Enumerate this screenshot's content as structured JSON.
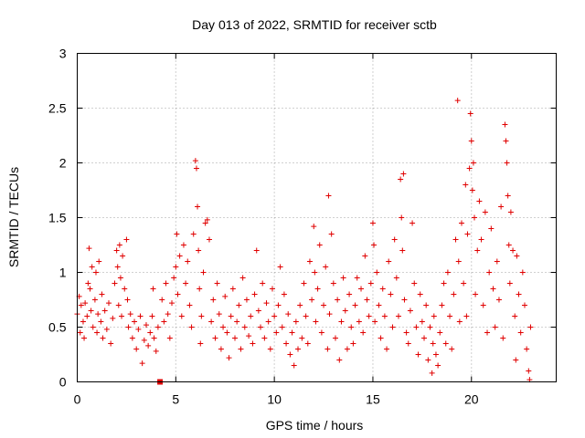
{
  "colors": {
    "series": "#e00000",
    "grid": "#a0a0a0",
    "frame": "#000000"
  },
  "chart_data": {
    "type": "scatter",
    "title": "Day 013 of 2022, SRMTID for receiver sctb",
    "xlabel": "GPS time / hours",
    "ylabel": "SRMTID / TECUs",
    "xlim": [
      0,
      24.3
    ],
    "ylim": [
      0,
      3
    ],
    "x_ticks": [
      0,
      5,
      10,
      15,
      20
    ],
    "x_tick_labels": [
      "0",
      "5",
      "10",
      "15",
      "20"
    ],
    "y_ticks": [
      0,
      0.5,
      1,
      1.5,
      2,
      2.5,
      3
    ],
    "y_tick_labels": [
      "0",
      "0.5",
      "1",
      "1.5",
      "2",
      "2.5",
      "3"
    ],
    "grid": true,
    "marker": "plus",
    "series": [
      {
        "name": "SRMTID",
        "points": [
          [
            0.0,
            0.62
          ],
          [
            0.1,
            0.78
          ],
          [
            0.15,
            0.45
          ],
          [
            0.2,
            0.7
          ],
          [
            0.3,
            0.55
          ],
          [
            0.35,
            0.4
          ],
          [
            0.4,
            0.72
          ],
          [
            0.5,
            0.6
          ],
          [
            0.55,
            0.9
          ],
          [
            0.6,
            1.22
          ],
          [
            0.65,
            0.85
          ],
          [
            0.7,
            0.65
          ],
          [
            0.75,
            1.05
          ],
          [
            0.8,
            0.5
          ],
          [
            0.9,
            0.75
          ],
          [
            0.95,
            1.0
          ],
          [
            1.0,
            0.45
          ],
          [
            1.05,
            0.62
          ],
          [
            1.1,
            1.1
          ],
          [
            1.2,
            0.55
          ],
          [
            1.25,
            0.8
          ],
          [
            1.3,
            0.4
          ],
          [
            1.4,
            0.65
          ],
          [
            1.5,
            0.48
          ],
          [
            1.6,
            0.72
          ],
          [
            1.7,
            0.35
          ],
          [
            1.8,
            0.58
          ],
          [
            1.9,
            0.9
          ],
          [
            2.0,
            1.2
          ],
          [
            2.05,
            1.05
          ],
          [
            2.1,
            0.7
          ],
          [
            2.15,
            1.25
          ],
          [
            2.2,
            0.95
          ],
          [
            2.25,
            0.6
          ],
          [
            2.3,
            1.15
          ],
          [
            2.4,
            0.85
          ],
          [
            2.5,
            1.3
          ],
          [
            2.55,
            0.75
          ],
          [
            2.6,
            0.5
          ],
          [
            2.7,
            0.62
          ],
          [
            2.8,
            0.4
          ],
          [
            2.9,
            0.55
          ],
          [
            3.0,
            0.3
          ],
          [
            3.1,
            0.48
          ],
          [
            3.2,
            0.6
          ],
          [
            3.3,
            0.17
          ],
          [
            3.4,
            0.38
          ],
          [
            3.5,
            0.52
          ],
          [
            3.6,
            0.33
          ],
          [
            3.7,
            0.45
          ],
          [
            3.8,
            0.6
          ],
          [
            3.85,
            0.85
          ],
          [
            3.9,
            0.4
          ],
          [
            4.0,
            0.28
          ],
          [
            4.1,
            0.5
          ],
          [
            4.25,
            0.0
          ],
          [
            4.3,
            0.75
          ],
          [
            4.4,
            0.55
          ],
          [
            4.5,
            0.9
          ],
          [
            4.6,
            0.62
          ],
          [
            4.7,
            0.4
          ],
          [
            4.8,
            0.72
          ],
          [
            4.9,
            0.95
          ],
          [
            5.0,
            1.05
          ],
          [
            5.05,
            1.35
          ],
          [
            5.1,
            0.8
          ],
          [
            5.2,
            1.15
          ],
          [
            5.3,
            0.6
          ],
          [
            5.4,
            1.25
          ],
          [
            5.5,
            0.9
          ],
          [
            5.6,
            1.1
          ],
          [
            5.7,
            0.7
          ],
          [
            5.8,
            0.5
          ],
          [
            5.9,
            1.35
          ],
          [
            6.0,
            2.02
          ],
          [
            6.05,
            1.95
          ],
          [
            6.1,
            1.6
          ],
          [
            6.15,
            1.2
          ],
          [
            6.2,
            0.85
          ],
          [
            6.25,
            0.35
          ],
          [
            6.3,
            0.6
          ],
          [
            6.4,
            1.0
          ],
          [
            6.5,
            1.45
          ],
          [
            6.6,
            1.48
          ],
          [
            6.7,
            1.3
          ],
          [
            6.8,
            0.55
          ],
          [
            6.9,
            0.75
          ],
          [
            7.0,
            0.4
          ],
          [
            7.1,
            0.9
          ],
          [
            7.2,
            0.62
          ],
          [
            7.3,
            0.3
          ],
          [
            7.4,
            0.5
          ],
          [
            7.5,
            0.78
          ],
          [
            7.6,
            0.45
          ],
          [
            7.7,
            0.22
          ],
          [
            7.8,
            0.6
          ],
          [
            7.9,
            0.85
          ],
          [
            8.0,
            0.4
          ],
          [
            8.1,
            0.55
          ],
          [
            8.2,
            0.7
          ],
          [
            8.3,
            0.3
          ],
          [
            8.4,
            0.95
          ],
          [
            8.5,
            0.5
          ],
          [
            8.6,
            0.75
          ],
          [
            8.7,
            0.42
          ],
          [
            8.8,
            0.6
          ],
          [
            8.9,
            0.35
          ],
          [
            9.0,
            0.8
          ],
          [
            9.1,
            1.2
          ],
          [
            9.2,
            0.65
          ],
          [
            9.3,
            0.5
          ],
          [
            9.4,
            0.9
          ],
          [
            9.5,
            0.4
          ],
          [
            9.6,
            0.72
          ],
          [
            9.7,
            0.55
          ],
          [
            9.8,
            0.3
          ],
          [
            9.9,
            0.85
          ],
          [
            10.0,
            0.6
          ],
          [
            10.1,
            0.45
          ],
          [
            10.2,
            0.7
          ],
          [
            10.3,
            1.05
          ],
          [
            10.4,
            0.5
          ],
          [
            10.5,
            0.8
          ],
          [
            10.6,
            0.35
          ],
          [
            10.7,
            0.62
          ],
          [
            10.8,
            0.25
          ],
          [
            10.9,
            0.45
          ],
          [
            11.0,
            0.15
          ],
          [
            11.1,
            0.55
          ],
          [
            11.2,
            0.3
          ],
          [
            11.3,
            0.7
          ],
          [
            11.4,
            0.4
          ],
          [
            11.5,
            0.9
          ],
          [
            11.6,
            0.6
          ],
          [
            11.7,
            0.35
          ],
          [
            11.8,
            1.1
          ],
          [
            11.9,
            0.75
          ],
          [
            12.0,
            1.42
          ],
          [
            12.05,
            1.0
          ],
          [
            12.1,
            0.55
          ],
          [
            12.2,
            0.85
          ],
          [
            12.3,
            1.25
          ],
          [
            12.4,
            0.45
          ],
          [
            12.5,
            0.7
          ],
          [
            12.6,
            1.05
          ],
          [
            12.7,
            0.3
          ],
          [
            12.75,
            1.7
          ],
          [
            12.8,
            0.62
          ],
          [
            12.9,
            1.35
          ],
          [
            13.0,
            0.9
          ],
          [
            13.1,
            0.4
          ],
          [
            13.2,
            0.75
          ],
          [
            13.3,
            0.2
          ],
          [
            13.4,
            0.55
          ],
          [
            13.5,
            0.95
          ],
          [
            13.6,
            0.65
          ],
          [
            13.7,
            0.3
          ],
          [
            13.8,
            0.8
          ],
          [
            13.9,
            0.5
          ],
          [
            14.0,
            0.35
          ],
          [
            14.1,
            0.7
          ],
          [
            14.2,
            0.95
          ],
          [
            14.3,
            0.55
          ],
          [
            14.4,
            0.85
          ],
          [
            14.5,
            0.45
          ],
          [
            14.6,
            1.15
          ],
          [
            14.7,
            0.75
          ],
          [
            14.8,
            0.6
          ],
          [
            14.9,
            0.9
          ],
          [
            15.0,
            1.45
          ],
          [
            15.05,
            1.25
          ],
          [
            15.1,
            0.55
          ],
          [
            15.2,
            1.0
          ],
          [
            15.3,
            0.7
          ],
          [
            15.4,
            0.4
          ],
          [
            15.5,
            0.85
          ],
          [
            15.6,
            0.6
          ],
          [
            15.7,
            0.3
          ],
          [
            15.8,
            1.1
          ],
          [
            15.9,
            0.8
          ],
          [
            16.0,
            0.5
          ],
          [
            16.1,
            1.3
          ],
          [
            16.2,
            0.95
          ],
          [
            16.3,
            0.6
          ],
          [
            16.4,
            1.85
          ],
          [
            16.45,
            1.5
          ],
          [
            16.5,
            1.2
          ],
          [
            16.55,
            1.9
          ],
          [
            16.6,
            0.75
          ],
          [
            16.7,
            0.45
          ],
          [
            16.8,
            0.35
          ],
          [
            16.9,
            0.65
          ],
          [
            17.0,
            1.45
          ],
          [
            17.1,
            0.9
          ],
          [
            17.2,
            0.5
          ],
          [
            17.3,
            0.25
          ],
          [
            17.4,
            0.8
          ],
          [
            17.5,
            0.55
          ],
          [
            17.6,
            0.4
          ],
          [
            17.7,
            0.7
          ],
          [
            17.8,
            0.2
          ],
          [
            17.9,
            0.5
          ],
          [
            18.0,
            0.08
          ],
          [
            18.05,
            0.35
          ],
          [
            18.1,
            0.6
          ],
          [
            18.2,
            0.25
          ],
          [
            18.3,
            0.15
          ],
          [
            18.4,
            0.45
          ],
          [
            18.5,
            0.7
          ],
          [
            18.6,
            0.9
          ],
          [
            18.7,
            0.35
          ],
          [
            18.8,
            1.0
          ],
          [
            18.9,
            0.6
          ],
          [
            19.0,
            0.3
          ],
          [
            19.1,
            0.8
          ],
          [
            19.2,
            1.3
          ],
          [
            19.3,
            2.57
          ],
          [
            19.35,
            1.1
          ],
          [
            19.4,
            0.55
          ],
          [
            19.5,
            1.45
          ],
          [
            19.6,
            0.9
          ],
          [
            19.7,
            1.8
          ],
          [
            19.75,
            0.6
          ],
          [
            19.8,
            1.35
          ],
          [
            19.9,
            1.95
          ],
          [
            19.95,
            2.45
          ],
          [
            20.0,
            2.2
          ],
          [
            20.05,
            1.75
          ],
          [
            20.1,
            2.0
          ],
          [
            20.15,
            1.5
          ],
          [
            20.2,
            0.8
          ],
          [
            20.3,
            1.2
          ],
          [
            20.4,
            1.65
          ],
          [
            20.5,
            1.3
          ],
          [
            20.6,
            0.7
          ],
          [
            20.7,
            1.55
          ],
          [
            20.8,
            0.45
          ],
          [
            20.9,
            1.0
          ],
          [
            21.0,
            1.4
          ],
          [
            21.1,
            0.85
          ],
          [
            21.2,
            0.5
          ],
          [
            21.3,
            1.1
          ],
          [
            21.4,
            0.75
          ],
          [
            21.5,
            1.6
          ],
          [
            21.6,
            0.4
          ],
          [
            21.7,
            2.35
          ],
          [
            21.75,
            2.2
          ],
          [
            21.8,
            2.0
          ],
          [
            21.85,
            1.7
          ],
          [
            21.9,
            1.25
          ],
          [
            21.95,
            0.9
          ],
          [
            22.0,
            1.55
          ],
          [
            22.1,
            1.2
          ],
          [
            22.2,
            0.6
          ],
          [
            22.25,
            0.2
          ],
          [
            22.3,
            1.15
          ],
          [
            22.4,
            0.8
          ],
          [
            22.5,
            0.45
          ],
          [
            22.6,
            1.0
          ],
          [
            22.7,
            0.7
          ],
          [
            22.8,
            0.3
          ],
          [
            22.9,
            0.1
          ],
          [
            22.95,
            0.02
          ],
          [
            23.0,
            0.5
          ]
        ]
      }
    ],
    "square_markers": [
      [
        4.2,
        0.0
      ]
    ]
  }
}
